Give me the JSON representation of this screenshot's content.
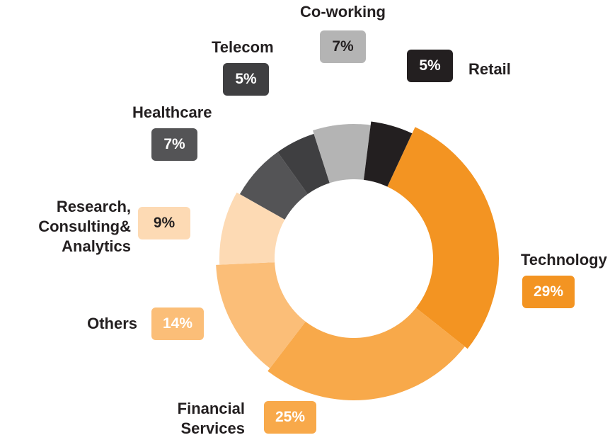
{
  "chart_data": {
    "type": "pie",
    "title": "",
    "categories": [
      "Technology",
      "Financial Services",
      "Others",
      "Research, Consulting& Analytics",
      "Healthcare",
      "Telecom",
      "Co-working",
      "Retail"
    ],
    "values": [
      29,
      25,
      14,
      9,
      7,
      5,
      7,
      5
    ],
    "value_labels": [
      "29%",
      "25%",
      "14%",
      "9%",
      "7%",
      "5%",
      "7%",
      "5%"
    ],
    "colors": [
      "#f39422",
      "#f8a94a",
      "#fbbe78",
      "#fddab4",
      "#545456",
      "#3f3f41",
      "#b4b4b4",
      "#231f20"
    ],
    "label_text_colors": [
      "#ffffff",
      "#ffffff",
      "#ffffff",
      "#231f20",
      "#ffffff",
      "#ffffff",
      "#231f20",
      "#ffffff"
    ],
    "legend": "none",
    "style": "donut"
  },
  "labels": {
    "technology": "Technology",
    "financial_1": "Financial",
    "financial_2": "Services",
    "others": "Others",
    "research_1": "Research,",
    "research_2": "Consulting&",
    "research_3": "Analytics",
    "healthcare": "Healthcare",
    "telecom": "Telecom",
    "coworking": "Co-working",
    "retail": "Retail"
  }
}
